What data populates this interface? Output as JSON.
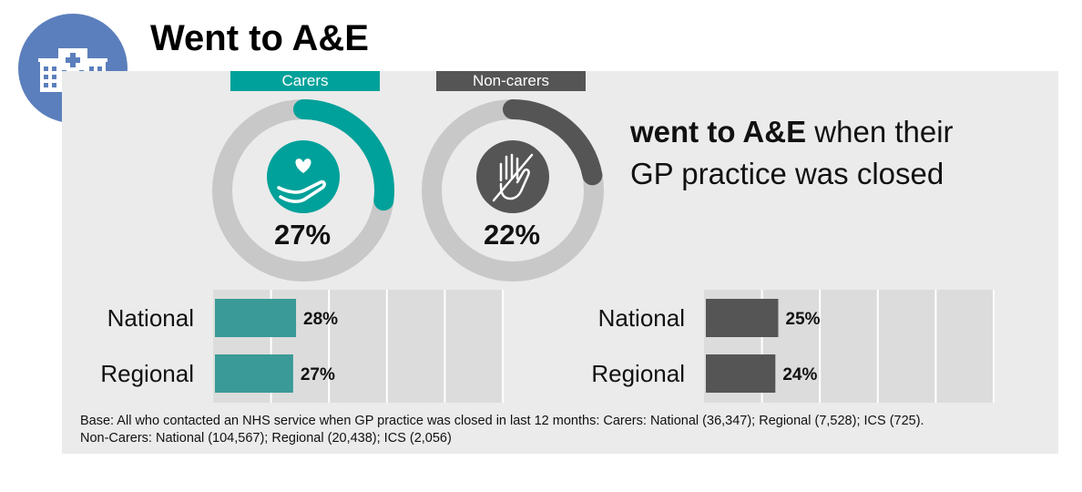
{
  "title": "Went to A&E",
  "icons": {
    "header": "hospital-icon",
    "carers": "caring-hand-heart-icon",
    "noncarers": "crossed-out-hand-icon"
  },
  "colors": {
    "carers": "#00a19a",
    "noncarers": "#555555",
    "track": "#c8c8c8",
    "panel": "#ebebeb",
    "header_circle": "#5b7fbc"
  },
  "statement": {
    "bold": "went to A&E",
    "rest_line1": " when their",
    "line2": "GP practice was closed"
  },
  "footnote": {
    "line1": "Base: All who contacted an NHS service when GP practice was closed in last 12 months: Carers: National (36,347); Regional (7,528); ICS (725).",
    "line2": "Non-Carers: National (104,567); Regional (20,438); ICS (2,056)"
  },
  "chart_data": [
    {
      "type": "pie",
      "name": "Carers",
      "value": 27,
      "label": "27%",
      "color": "#00a19a"
    },
    {
      "type": "pie",
      "name": "Non-carers",
      "value": 22,
      "label": "22%",
      "color": "#555555"
    },
    {
      "type": "bar",
      "categories": [
        "National",
        "Regional"
      ],
      "values": [
        28,
        27
      ],
      "labels": [
        "28%",
        "27%"
      ],
      "xlim": [
        0,
        100
      ],
      "color": "#3a9a97"
    },
    {
      "type": "bar",
      "categories": [
        "National",
        "Regional"
      ],
      "values": [
        25,
        24
      ],
      "labels": [
        "25%",
        "24%"
      ],
      "xlim": [
        0,
        100
      ],
      "color": "#555555"
    }
  ]
}
